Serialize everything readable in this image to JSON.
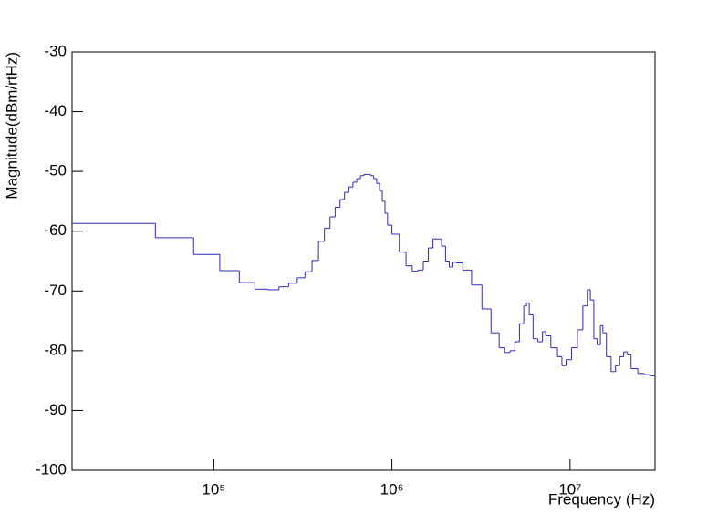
{
  "chart_data": {
    "type": "line",
    "step": true,
    "xlabel": "Frequency (Hz)",
    "ylabel": "Magnitude(dBm/rtHz)",
    "xscale": "log",
    "color": "#2b2bb8",
    "xlim": [
      16000,
      30000000
    ],
    "ylim": [
      -100,
      -30
    ],
    "xticks": [
      {
        "value": 100000,
        "label": "10⁵"
      },
      {
        "value": 1000000,
        "label": "10⁶"
      },
      {
        "value": 10000000,
        "label": "10⁷"
      }
    ],
    "yticks": [
      -30,
      -40,
      -50,
      -60,
      -70,
      -80,
      -90,
      -100
    ],
    "x": [
      16000,
      47000,
      77000,
      108000,
      139000,
      170000,
      201000,
      232000,
      263000,
      294000,
      325000,
      356000,
      387000,
      418000,
      449000,
      480000,
      511000,
      542000,
      573000,
      604000,
      635000,
      666000,
      697000,
      728000,
      759000,
      790000,
      821000,
      852000,
      883000,
      914000,
      945000,
      1000000,
      1100000,
      1200000,
      1300000,
      1400000,
      1500000,
      1600000,
      1700000,
      1800000,
      1900000,
      2000000,
      2100000,
      2200000,
      2300000,
      2500000,
      2800000,
      3200000,
      3600000,
      4000000,
      4300000,
      4600000,
      4900000,
      5200000,
      5500000,
      5700000,
      5900000,
      6200000,
      6600000,
      7000000,
      7300000,
      7800000,
      8500000,
      9000000,
      9500000,
      10200000,
      11000000,
      11800000,
      12500000,
      13000000,
      13600000,
      14200000,
      14800000,
      15300000,
      16000000,
      17000000,
      18000000,
      19000000,
      20000000,
      21000000,
      22000000,
      24000000,
      26000000,
      28000000
    ],
    "values": [
      -58.7,
      -61.1,
      -63.9,
      -66.6,
      -68.6,
      -69.7,
      -69.8,
      -69.3,
      -68.7,
      -67.8,
      -66.8,
      -64.9,
      -61.7,
      -59.5,
      -57.6,
      -56.0,
      -54.7,
      -53.5,
      -52.6,
      -51.8,
      -51.2,
      -50.7,
      -50.5,
      -50.5,
      -50.7,
      -51.2,
      -52.0,
      -53.3,
      -55.0,
      -57.0,
      -59.0,
      -60.5,
      -63.5,
      -65.8,
      -66.7,
      -66.5,
      -65.0,
      -62.8,
      -61.3,
      -61.3,
      -62.5,
      -65.0,
      -66.0,
      -65.2,
      -65.3,
      -66.5,
      -69.0,
      -73.0,
      -77.0,
      -79.5,
      -80.3,
      -80.0,
      -78.5,
      -75.5,
      -72.5,
      -72.0,
      -74.0,
      -78.0,
      -78.5,
      -76.8,
      -77.5,
      -79.5,
      -81.0,
      -82.5,
      -81.5,
      -79.5,
      -76.5,
      -72.5,
      -69.8,
      -71.5,
      -78.0,
      -79.0,
      -75.8,
      -77.0,
      -81.0,
      -83.5,
      -82.5,
      -81.0,
      -80.2,
      -80.7,
      -83.0,
      -83.8,
      -84.0,
      -84.2
    ]
  }
}
